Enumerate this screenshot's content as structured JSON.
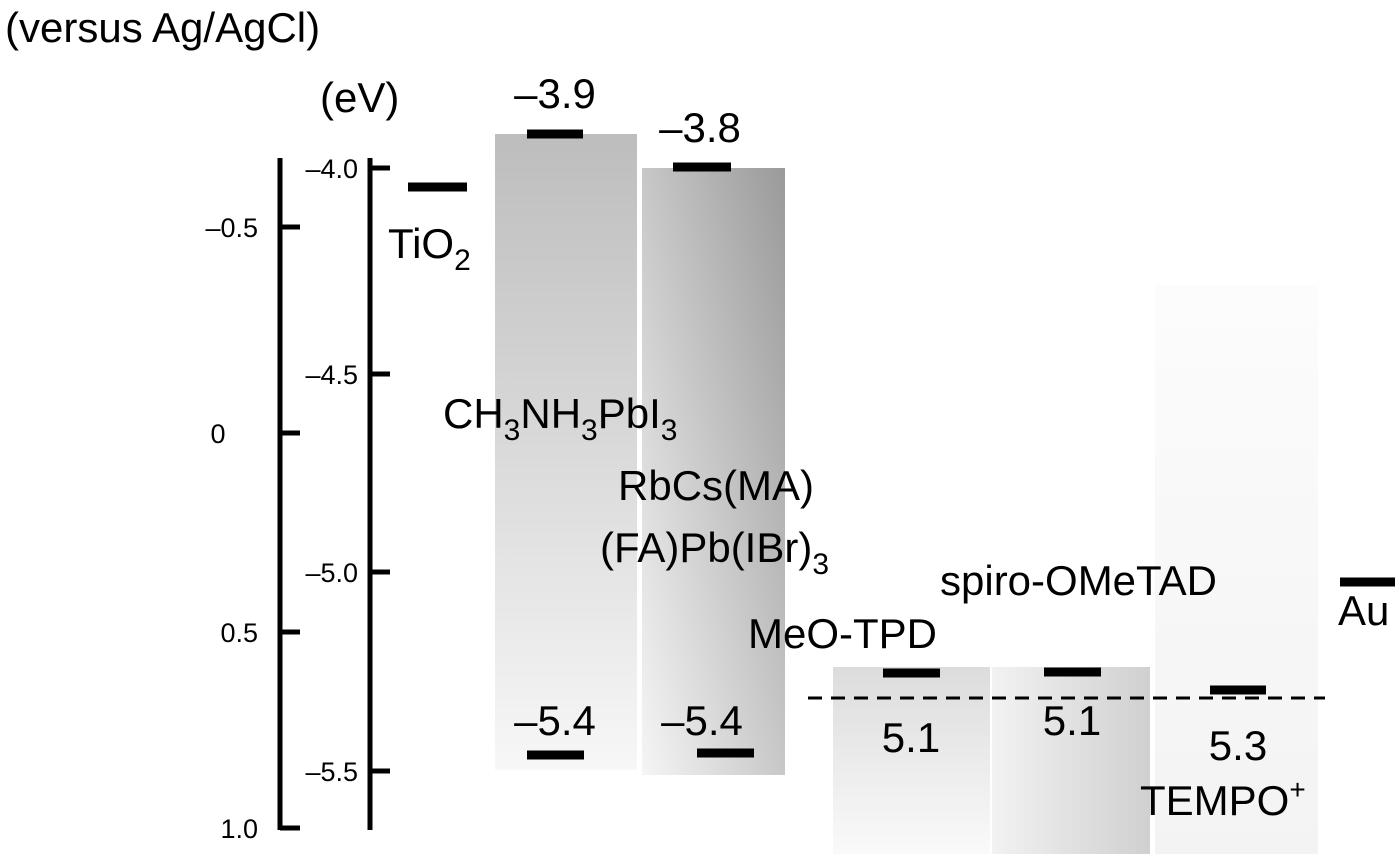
{
  "header": {
    "reference": "(versus Ag/AgCl)",
    "unit": "(eV)"
  },
  "left_axis": {
    "ticks": [
      "–0.5",
      "0",
      "0.5",
      "1.0"
    ]
  },
  "right_axis": {
    "ticks": [
      "–4.0",
      "–4.5",
      "–5.0",
      "–5.5"
    ]
  },
  "materials": {
    "tio2": [
      "TiO",
      "2"
    ],
    "mapbi3": [
      "CH",
      "3",
      "NH",
      "3",
      "PbI",
      "3"
    ],
    "rbcs": [
      "RbCs(MA)",
      "(FA)Pb(IBr)",
      "3"
    ],
    "spiro": "spiro-OMeTAD",
    "meotpd": "MeO-TPD",
    "tempo": [
      "TEMPO",
      "+"
    ],
    "au": "Au"
  },
  "levels": {
    "mapbi3_cb": "–3.9",
    "rbcs_cb": "–3.8",
    "mapbi3_vb": "–5.4",
    "rbcs_vb": "–5.4",
    "meotpd": "5.1",
    "spiro": "5.1",
    "tempo": "5.3"
  }
}
